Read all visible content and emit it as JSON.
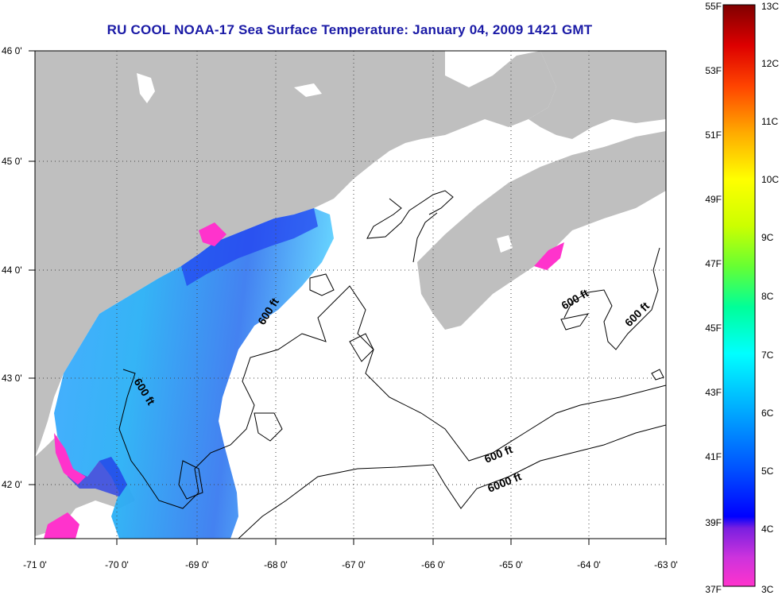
{
  "title": "RU COOL  NOAA-17  Sea Surface Temperature:  January 04, 2009 1421 GMT",
  "map": {
    "lat_labels": [
      "46 0'",
      "45 0'",
      "44 0'",
      "43 0'",
      "42 0'"
    ],
    "lon_labels": [
      "-71 0'",
      "-70 0'",
      "-69 0'",
      "-68 0'",
      "-67 0'",
      "-66 0'",
      "-65 0'",
      "-64 0'",
      "-63 0'"
    ],
    "lat_range": [
      41.5,
      46
    ],
    "lon_range": [
      -71,
      -63
    ],
    "land_color": "#bfbfbf",
    "grid": "dotted",
    "contour_labels": [
      "600 ft",
      "600 ft",
      "600 ft",
      "600 ft",
      "600 ft",
      "6000 ft"
    ]
  },
  "colorbar": {
    "fahrenheit_labels": [
      "55F",
      "53F",
      "51F",
      "49F",
      "47F",
      "45F",
      "43F",
      "41F",
      "39F",
      "37F"
    ],
    "celsius_labels": [
      "13C",
      "12C",
      "11C",
      "10C",
      "9C",
      "8C",
      "7C",
      "6C",
      "5C",
      "4C",
      "3C"
    ],
    "range_celsius": [
      3,
      13
    ],
    "colors": [
      "#ff33cc",
      "#8a2be2",
      "#0000ff",
      "#0077ff",
      "#00ccff",
      "#00ffcc",
      "#66ff66",
      "#ccff00",
      "#ffff00",
      "#ffaa00",
      "#ff3300",
      "#cc0000",
      "#800000"
    ]
  }
}
